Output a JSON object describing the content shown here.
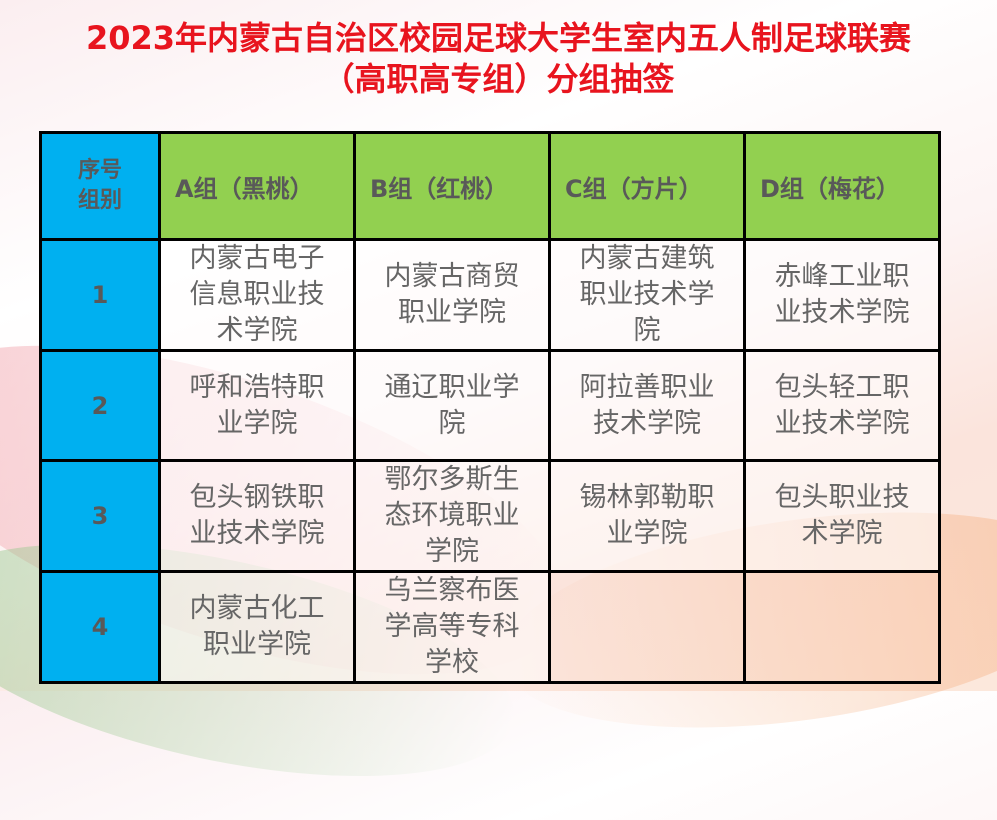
{
  "title": {
    "line1": "2023年内蒙古自治区校园足球大学生室内五人制足球联赛",
    "line2": "（高职高专组）分组抽签"
  },
  "table": {
    "corner": {
      "line1": "序号",
      "line2": "组别"
    },
    "headers": [
      "A组（黑桃）",
      "B组（红桃）",
      "C组（方片）",
      "D组（梅花）"
    ],
    "rows": [
      {
        "index": "1",
        "cells": [
          "内蒙古电子信息职业技术学院",
          "内蒙古商贸职业学院",
          "内蒙古建筑职业技术学院",
          "赤峰工业职业技术学院"
        ]
      },
      {
        "index": "2",
        "cells": [
          "呼和浩特职业学院",
          "通辽职业学院",
          "阿拉善职业技术学院",
          "包头轻工职业技术学院"
        ]
      },
      {
        "index": "3",
        "cells": [
          "包头钢铁职业技术学院",
          "鄂尔多斯生态环境职业学院",
          "锡林郭勒职业学院",
          "包头职业技术学院"
        ]
      },
      {
        "index": "4",
        "cells": [
          "内蒙古化工职业学院",
          "乌兰察布医学高等专科学校",
          "",
          ""
        ]
      }
    ]
  },
  "colors": {
    "title": "#e8141e",
    "index_column": "#00b0f0",
    "header_row": "#92d050"
  }
}
